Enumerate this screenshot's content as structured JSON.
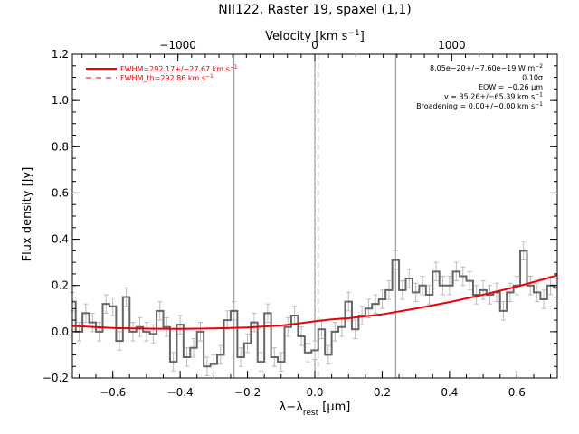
{
  "chart_data": {
    "type": "line",
    "title": "NII122, Raster 19, spaxel (1,1)",
    "xlabel": "λ−λ",
    "xlabel_sub": "rest",
    "xlabel_unit": " [μm]",
    "ylabel": "Flux density [Jy]",
    "top_axis_label": "Velocity [km s",
    "top_axis_sup": "−1",
    "top_axis_close": "]",
    "xlim": [
      -0.72,
      0.72
    ],
    "ylim": [
      -0.2,
      1.2
    ],
    "x_ticks": [
      -0.6,
      -0.4,
      -0.2,
      0.0,
      0.2,
      0.4,
      0.6
    ],
    "x_tick_labels": [
      "−0.6",
      "−0.4",
      "−0.2",
      "0.0",
      "0.2",
      "0.4",
      "0.6"
    ],
    "y_ticks": [
      -0.2,
      0.0,
      0.2,
      0.4,
      0.6,
      0.8,
      1.0,
      1.2
    ],
    "y_tick_labels": [
      "−0.2",
      "0.0",
      "0.2",
      "0.4",
      "0.6",
      "0.8",
      "1.0",
      "1.2"
    ],
    "top_ticks": [
      -1000,
      0,
      1000
    ],
    "top_tick_labels": [
      "−1000",
      "0",
      "1000"
    ],
    "vlines_solid": [
      -0.24,
      0.0,
      0.24
    ],
    "vline_dashed": 0.01,
    "annotations": [
      {
        "pre": "8.05e−20+/−7.60e−19 W m",
        "sup": "−2"
      },
      {
        "pre": "0.10σ",
        "sup": ""
      },
      {
        "pre": "EQW = −0.26 μm",
        "sup": ""
      },
      {
        "pre": "v = 35.26+/−65.39 km s",
        "sup": "−1"
      },
      {
        "pre": "Broadening = 0.00+/−0.00 km s",
        "sup": "−1"
      }
    ],
    "legend": [
      {
        "pre": "FWHM=292.17+/−27.67 km s",
        "sup": "−1",
        "style": "solid"
      },
      {
        "pre": "FWHM_th=292.86 km s",
        "sup": "−1",
        "style": "dashed"
      }
    ],
    "colors": {
      "data": "#666666",
      "errorbar": "#bbbbbb",
      "fit": "#ee0000",
      "vline": "#888888"
    },
    "series": [
      {
        "type": "step",
        "x": [
          -0.72,
          -0.7,
          -0.68,
          -0.66,
          -0.64,
          -0.62,
          -0.6,
          -0.58,
          -0.56,
          -0.54,
          -0.52,
          -0.5,
          -0.48,
          -0.46,
          -0.44,
          -0.42,
          -0.4,
          -0.38,
          -0.36,
          -0.34,
          -0.32,
          -0.3,
          -0.28,
          -0.26,
          -0.24,
          -0.22,
          -0.2,
          -0.18,
          -0.16,
          -0.14,
          -0.12,
          -0.1,
          -0.08,
          -0.06,
          -0.04,
          -0.02,
          0.0,
          0.02,
          0.04,
          0.06,
          0.08,
          0.1,
          0.12,
          0.14,
          0.16,
          0.18,
          0.2,
          0.22,
          0.24,
          0.26,
          0.28,
          0.3,
          0.32,
          0.34,
          0.36,
          0.38,
          0.4,
          0.42,
          0.44,
          0.46,
          0.48,
          0.5,
          0.52,
          0.54,
          0.56,
          0.58,
          0.6,
          0.62,
          0.64,
          0.66,
          0.68,
          0.7,
          0.72
        ],
        "y": [
          0.13,
          0.0,
          0.08,
          0.04,
          0.0,
          0.12,
          0.11,
          -0.04,
          0.15,
          0.0,
          0.02,
          0.0,
          -0.01,
          0.09,
          0.02,
          -0.13,
          0.03,
          -0.11,
          -0.07,
          0.0,
          -0.15,
          -0.14,
          -0.1,
          0.05,
          0.09,
          -0.11,
          -0.05,
          0.04,
          -0.13,
          0.08,
          -0.11,
          -0.13,
          0.02,
          0.07,
          -0.02,
          -0.09,
          -0.08,
          0.01,
          -0.1,
          0.0,
          0.02,
          0.13,
          0.01,
          0.07,
          0.1,
          0.12,
          0.14,
          0.18,
          0.31,
          0.18,
          0.23,
          0.17,
          0.2,
          0.16,
          0.26,
          0.2,
          0.2,
          0.26,
          0.24,
          0.22,
          0.16,
          0.18,
          0.16,
          0.17,
          0.09,
          0.17,
          0.2,
          0.35,
          0.2,
          0.17,
          0.14,
          0.2,
          0.19
        ],
        "err": 0.04
      },
      {
        "type": "line",
        "x": [
          -0.72,
          -0.6,
          -0.5,
          -0.4,
          -0.3,
          -0.2,
          -0.1,
          -0.05,
          0.0,
          0.05,
          0.1,
          0.2,
          0.3,
          0.4,
          0.5,
          0.6,
          0.7,
          0.72
        ],
        "y": [
          0.025,
          0.016,
          0.013,
          0.012,
          0.014,
          0.018,
          0.027,
          0.035,
          0.045,
          0.053,
          0.058,
          0.075,
          0.1,
          0.128,
          0.16,
          0.195,
          0.235,
          0.245
        ]
      }
    ]
  }
}
